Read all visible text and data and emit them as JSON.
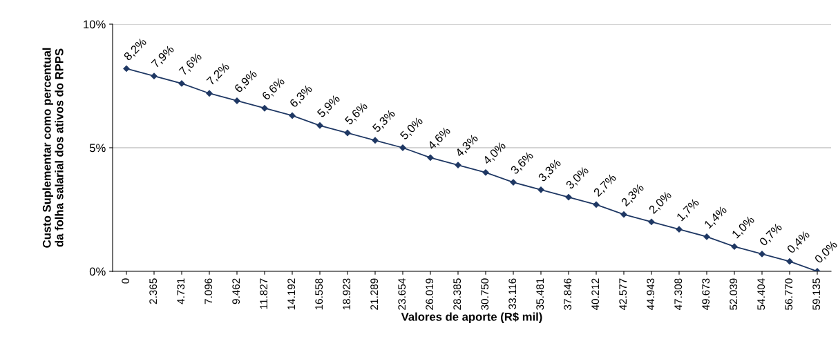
{
  "chart_data": {
    "type": "line",
    "xlabel": "Valores de aporte (R$ mil)",
    "ylabel": "Custo Suplementar como percentual\nda folha salarial dos ativos do RPPS",
    "categories": [
      "0",
      "2.365",
      "4.731",
      "7.096",
      "9.462",
      "11.827",
      "14.192",
      "16.558",
      "18.923",
      "21.289",
      "23.654",
      "26.019",
      "28.385",
      "30.750",
      "33.116",
      "35.481",
      "37.846",
      "40.212",
      "42.577",
      "44.943",
      "47.308",
      "49.673",
      "52.039",
      "54.404",
      "56.770",
      "59.135"
    ],
    "series": [
      {
        "color": "#1f3864",
        "values": [
          8.2,
          7.9,
          7.6,
          7.2,
          6.9,
          6.6,
          6.3,
          5.9,
          5.6,
          5.3,
          5.0,
          4.6,
          4.3,
          4.0,
          3.6,
          3.3,
          3.0,
          2.7,
          2.3,
          2.0,
          1.7,
          1.4,
          1.0,
          0.7,
          0.4,
          0.0
        ],
        "value_labels": [
          "8,2%",
          "7,9%",
          "7,6%",
          "7,2%",
          "6,9%",
          "6,6%",
          "6,3%",
          "5,9%",
          "5,6%",
          "5,3%",
          "5,0%",
          "4,6%",
          "4,3%",
          "4,0%",
          "3,6%",
          "3,3%",
          "3,0%",
          "2,7%",
          "2,3%",
          "2,0%",
          "1,7%",
          "1,4%",
          "1,0%",
          "0,7%",
          "0,4%",
          "0,0%"
        ]
      }
    ],
    "ylim": [
      0,
      10
    ],
    "yticks": [
      {
        "value": 0,
        "label": "0%"
      },
      {
        "value": 5,
        "label": "5%"
      },
      {
        "value": 10,
        "label": "10%"
      }
    ],
    "grid": "y",
    "legend": false,
    "marker": "diamond",
    "line_style": "solid"
  }
}
